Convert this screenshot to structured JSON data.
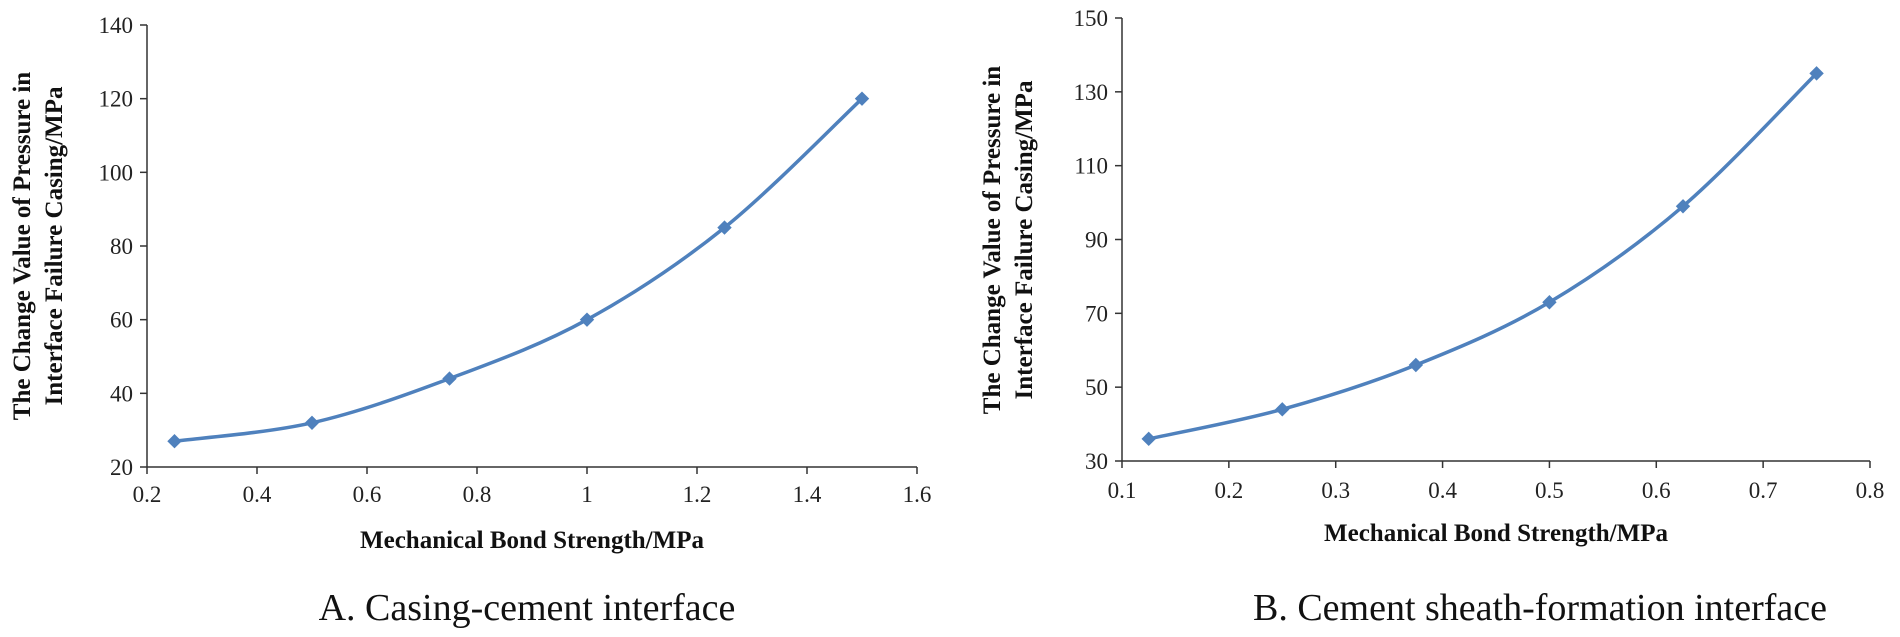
{
  "chart_data": [
    {
      "type": "line",
      "title": "",
      "caption": "A. Casing-cement interface",
      "xlabel": "Mechanical Bond Strength/MPa",
      "ylabel_lines": [
        "The Change Value of Pressure in",
        "Interface Failure Casing/MPa"
      ],
      "xlim": [
        0.2,
        1.6
      ],
      "ylim": [
        20,
        140
      ],
      "xticks": [
        0.2,
        0.4,
        0.6,
        0.8,
        1,
        1.2,
        1.4,
        1.6
      ],
      "xtick_labels": [
        "0.2",
        "0.4",
        "0.6",
        "0.8",
        "1",
        "1.2",
        "1.4",
        "1.6"
      ],
      "yticks": [
        20,
        40,
        60,
        80,
        100,
        120,
        140
      ],
      "ytick_labels": [
        "20",
        "40",
        "60",
        "80",
        "100",
        "120",
        "140"
      ],
      "grid": false,
      "series": [
        {
          "name": "",
          "color": "#4f81bd",
          "marker": "diamond",
          "x": [
            0.25,
            0.5,
            0.75,
            1.0,
            1.25,
            1.5
          ],
          "y": [
            27,
            32,
            44,
            60,
            85,
            120
          ]
        }
      ]
    },
    {
      "type": "line",
      "title": "",
      "caption": "B. Cement sheath-formation interface",
      "xlabel": "Mechanical Bond Strength/MPa",
      "ylabel_lines": [
        "The Change Value of Pressure in",
        "Interface Failure Casing/MPa"
      ],
      "xlim": [
        0.1,
        0.8
      ],
      "ylim": [
        30,
        150
      ],
      "xticks": [
        0.1,
        0.2,
        0.3,
        0.4,
        0.5,
        0.6,
        0.7,
        0.8
      ],
      "xtick_labels": [
        "0.1",
        "0.2",
        "0.3",
        "0.4",
        "0.5",
        "0.6",
        "0.7",
        "0.8"
      ],
      "yticks": [
        30,
        50,
        70,
        90,
        110,
        130,
        150
      ],
      "ytick_labels": [
        "30",
        "50",
        "70",
        "90",
        "110",
        "130",
        "150"
      ],
      "grid": false,
      "series": [
        {
          "name": "",
          "color": "#4f81bd",
          "marker": "diamond",
          "x": [
            0.125,
            0.25,
            0.375,
            0.5,
            0.625,
            0.75
          ],
          "y": [
            36,
            44,
            56,
            73,
            99,
            135
          ]
        }
      ]
    }
  ]
}
